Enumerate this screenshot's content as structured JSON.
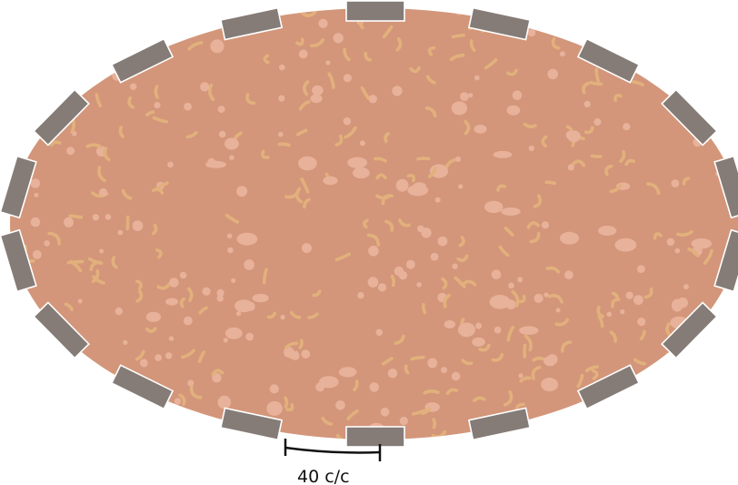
{
  "diagram": {
    "spacing_label": "40 c/c",
    "pattern": "terrazzo",
    "block_count": 18
  },
  "colors": {
    "slab_fill": "#d3967a",
    "speckle_light": "#e8b19a",
    "speckle_sand": "#e2b07c",
    "block_fill": "#857c77",
    "block_stroke": "#ffffff",
    "dimension_line": "#111111"
  }
}
